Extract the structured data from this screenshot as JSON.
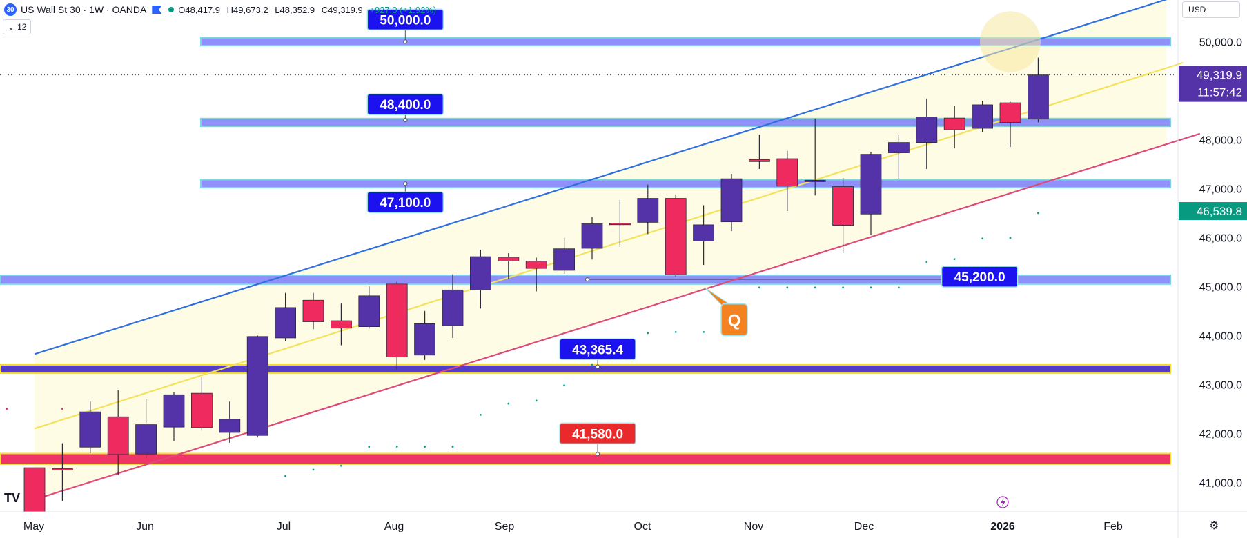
{
  "header": {
    "badge": "30",
    "symbol": "US Wall St 30 · 1W · OANDA",
    "open": "O48,417.9",
    "high": "H49,673.2",
    "low": "L48,352.9",
    "close": "C49,319.9",
    "change": "+927.0 (+1.92%)"
  },
  "indicator_count": "12",
  "currency": "USD",
  "logo": "TV",
  "settings_icon": "gear-icon",
  "colors": {
    "bull": "#5432a8",
    "bear": "#ee2a5f",
    "zone": "#7b7dfa",
    "zone_border": "#79d6dd",
    "upper_line": "#2f6fe0",
    "mid_line": "#f3e25a",
    "lower_line": "#dd4a7a",
    "label_blue": "#1c12f0",
    "label_red": "#ea2a2a",
    "callout": "#f58220",
    "price_badge": "#3a19b4",
    "countdown_badge": "#5433a8",
    "green_badge": "#089981"
  },
  "chart_data": {
    "type": "candlestick",
    "ylim": [
      40400,
      50850
    ],
    "x_ticks": [
      "May",
      "Jun",
      "Jul",
      "Aug",
      "Sep",
      "Oct",
      "Nov",
      "Dec",
      "2026",
      "Feb"
    ],
    "y_ticks": [
      "41,000.0",
      "42,000.0",
      "43,000.0",
      "44,000.0",
      "45,000.0",
      "46,000.0",
      "47,000.0",
      "48,000.0",
      "50,000.0"
    ],
    "last_price": "49,319.9",
    "countdown": "11:57:42",
    "last_price_value": 49319.9,
    "indicator_level": "46,539.8",
    "indicator_level_value": 46539.8,
    "candles": [
      {
        "o": 41300,
        "h": 41300,
        "l": 40400,
        "c": 40400
      },
      {
        "o": 41280,
        "h": 41800,
        "l": 40620,
        "c": 41260
      },
      {
        "o": 41720,
        "h": 42650,
        "l": 41600,
        "c": 42440
      },
      {
        "o": 42340,
        "h": 42880,
        "l": 41150,
        "c": 41570
      },
      {
        "o": 41580,
        "h": 42700,
        "l": 41500,
        "c": 42180
      },
      {
        "o": 42130,
        "h": 42850,
        "l": 41850,
        "c": 42790
      },
      {
        "o": 42820,
        "h": 43150,
        "l": 42060,
        "c": 42120
      },
      {
        "o": 42020,
        "h": 42650,
        "l": 41810,
        "c": 42290
      },
      {
        "o": 41960,
        "h": 44000,
        "l": 41920,
        "c": 43980
      },
      {
        "o": 43950,
        "h": 44870,
        "l": 43880,
        "c": 44570
      },
      {
        "o": 44720,
        "h": 44870,
        "l": 44130,
        "c": 44280
      },
      {
        "o": 44300,
        "h": 44650,
        "l": 43800,
        "c": 44150
      },
      {
        "o": 44180,
        "h": 45000,
        "l": 44140,
        "c": 44810
      },
      {
        "o": 45050,
        "h": 45100,
        "l": 43300,
        "c": 43560
      },
      {
        "o": 43600,
        "h": 44500,
        "l": 43500,
        "c": 44240
      },
      {
        "o": 44200,
        "h": 45250,
        "l": 43950,
        "c": 44930
      },
      {
        "o": 44930,
        "h": 45750,
        "l": 44550,
        "c": 45610
      },
      {
        "o": 45600,
        "h": 45680,
        "l": 45150,
        "c": 45520
      },
      {
        "o": 45520,
        "h": 45590,
        "l": 44900,
        "c": 45370
      },
      {
        "o": 45330,
        "h": 46000,
        "l": 45260,
        "c": 45770
      },
      {
        "o": 45780,
        "h": 46420,
        "l": 45550,
        "c": 46280
      },
      {
        "o": 46290,
        "h": 46770,
        "l": 45810,
        "c": 46270
      },
      {
        "o": 46310,
        "h": 47080,
        "l": 46070,
        "c": 46800
      },
      {
        "o": 46800,
        "h": 46880,
        "l": 45190,
        "c": 45240
      },
      {
        "o": 45930,
        "h": 46660,
        "l": 45440,
        "c": 46260
      },
      {
        "o": 46320,
        "h": 47300,
        "l": 46130,
        "c": 47200
      },
      {
        "o": 47590,
        "h": 48100,
        "l": 47400,
        "c": 47550
      },
      {
        "o": 47610,
        "h": 47770,
        "l": 46540,
        "c": 47050
      },
      {
        "o": 47140,
        "h": 48430,
        "l": 46860,
        "c": 47170
      },
      {
        "o": 47040,
        "h": 47220,
        "l": 45680,
        "c": 46250
      },
      {
        "o": 46480,
        "h": 47750,
        "l": 46050,
        "c": 47700
      },
      {
        "o": 47730,
        "h": 48100,
        "l": 47200,
        "c": 47940
      },
      {
        "o": 47940,
        "h": 48830,
        "l": 47400,
        "c": 48460
      },
      {
        "o": 48440,
        "h": 48690,
        "l": 47820,
        "c": 48200
      },
      {
        "o": 48230,
        "h": 48790,
        "l": 48160,
        "c": 48710
      },
      {
        "o": 48750,
        "h": 48770,
        "l": 47850,
        "c": 48350
      },
      {
        "o": 48418,
        "h": 49673,
        "l": 48353,
        "c": 49320
      }
    ],
    "dots": [
      {
        "i": -1,
        "v": 42500
      },
      {
        "i": 1,
        "v": 42500
      },
      {
        "i": 9,
        "v": 41130
      },
      {
        "i": 10,
        "v": 41260
      },
      {
        "i": 11,
        "v": 41340
      },
      {
        "i": 12,
        "v": 41730
      },
      {
        "i": 13,
        "v": 41730
      },
      {
        "i": 14,
        "v": 41730
      },
      {
        "i": 15,
        "v": 41730
      },
      {
        "i": 16,
        "v": 42380
      },
      {
        "i": 17,
        "v": 42610
      },
      {
        "i": 18,
        "v": 42670
      },
      {
        "i": 19,
        "v": 42980
      },
      {
        "i": 20,
        "v": 43400
      },
      {
        "i": 21,
        "v": 43790
      },
      {
        "i": 22,
        "v": 44050
      },
      {
        "i": 23,
        "v": 44070
      },
      {
        "i": 24,
        "v": 44070
      },
      {
        "i": 25,
        "v": 44250
      },
      {
        "i": 26,
        "v": 44980
      },
      {
        "i": 27,
        "v": 44980
      },
      {
        "i": 28,
        "v": 44980
      },
      {
        "i": 29,
        "v": 44980
      },
      {
        "i": 30,
        "v": 44980
      },
      {
        "i": 31,
        "v": 44980
      },
      {
        "i": 32,
        "v": 45500
      },
      {
        "i": 33,
        "v": 45560
      },
      {
        "i": 34,
        "v": 45980
      },
      {
        "i": 35,
        "v": 45990
      },
      {
        "i": 36,
        "v": 46500
      }
    ],
    "zones": [
      {
        "lo": 49920,
        "hi": 50080
      },
      {
        "lo": 48270,
        "hi": 48430
      },
      {
        "lo": 47020,
        "hi": 47180
      },
      {
        "lo": 45050,
        "hi": 45230
      },
      {
        "lo": 43230,
        "hi": 43400,
        "yellow": true
      },
      {
        "lo": 41370,
        "hi": 41590,
        "pink": true
      }
    ],
    "channel": {
      "upper": [
        {
          "i": 0,
          "v": 43620
        },
        {
          "i": 41.6,
          "v": 51040
        }
      ],
      "mid": [
        {
          "i": 0,
          "v": 42100
        },
        {
          "i": 41.2,
          "v": 49570
        }
      ],
      "lower": [
        {
          "i": 0,
          "v": 40650
        },
        {
          "i": 41.8,
          "v": 48120
        }
      ]
    },
    "level_labels": [
      {
        "text": "50,000.0",
        "i": 13.3,
        "v": 50450,
        "anchor_v": 50000,
        "color": "blue"
      },
      {
        "text": "48,400.0",
        "i": 13.3,
        "v": 48720,
        "anchor_v": 48400,
        "color": "blue"
      },
      {
        "text": "47,100.0",
        "i": 13.3,
        "v": 46720,
        "anchor_v": 47100,
        "color": "blue"
      },
      {
        "text": "45,200.0",
        "i": 33.9,
        "v": 45200,
        "color": "blue"
      },
      {
        "text": "43,365.4",
        "i": 20.2,
        "v": 43720,
        "anchor_v": 43365,
        "color": "blue"
      },
      {
        "text": "41,580.0",
        "i": 20.2,
        "v": 42000,
        "anchor_v": 41580,
        "color": "red"
      }
    ],
    "callout": {
      "text": "Q",
      "i": 25.1,
      "v": 44320
    },
    "highlight": {
      "i": 35.0,
      "v": 50000
    }
  }
}
